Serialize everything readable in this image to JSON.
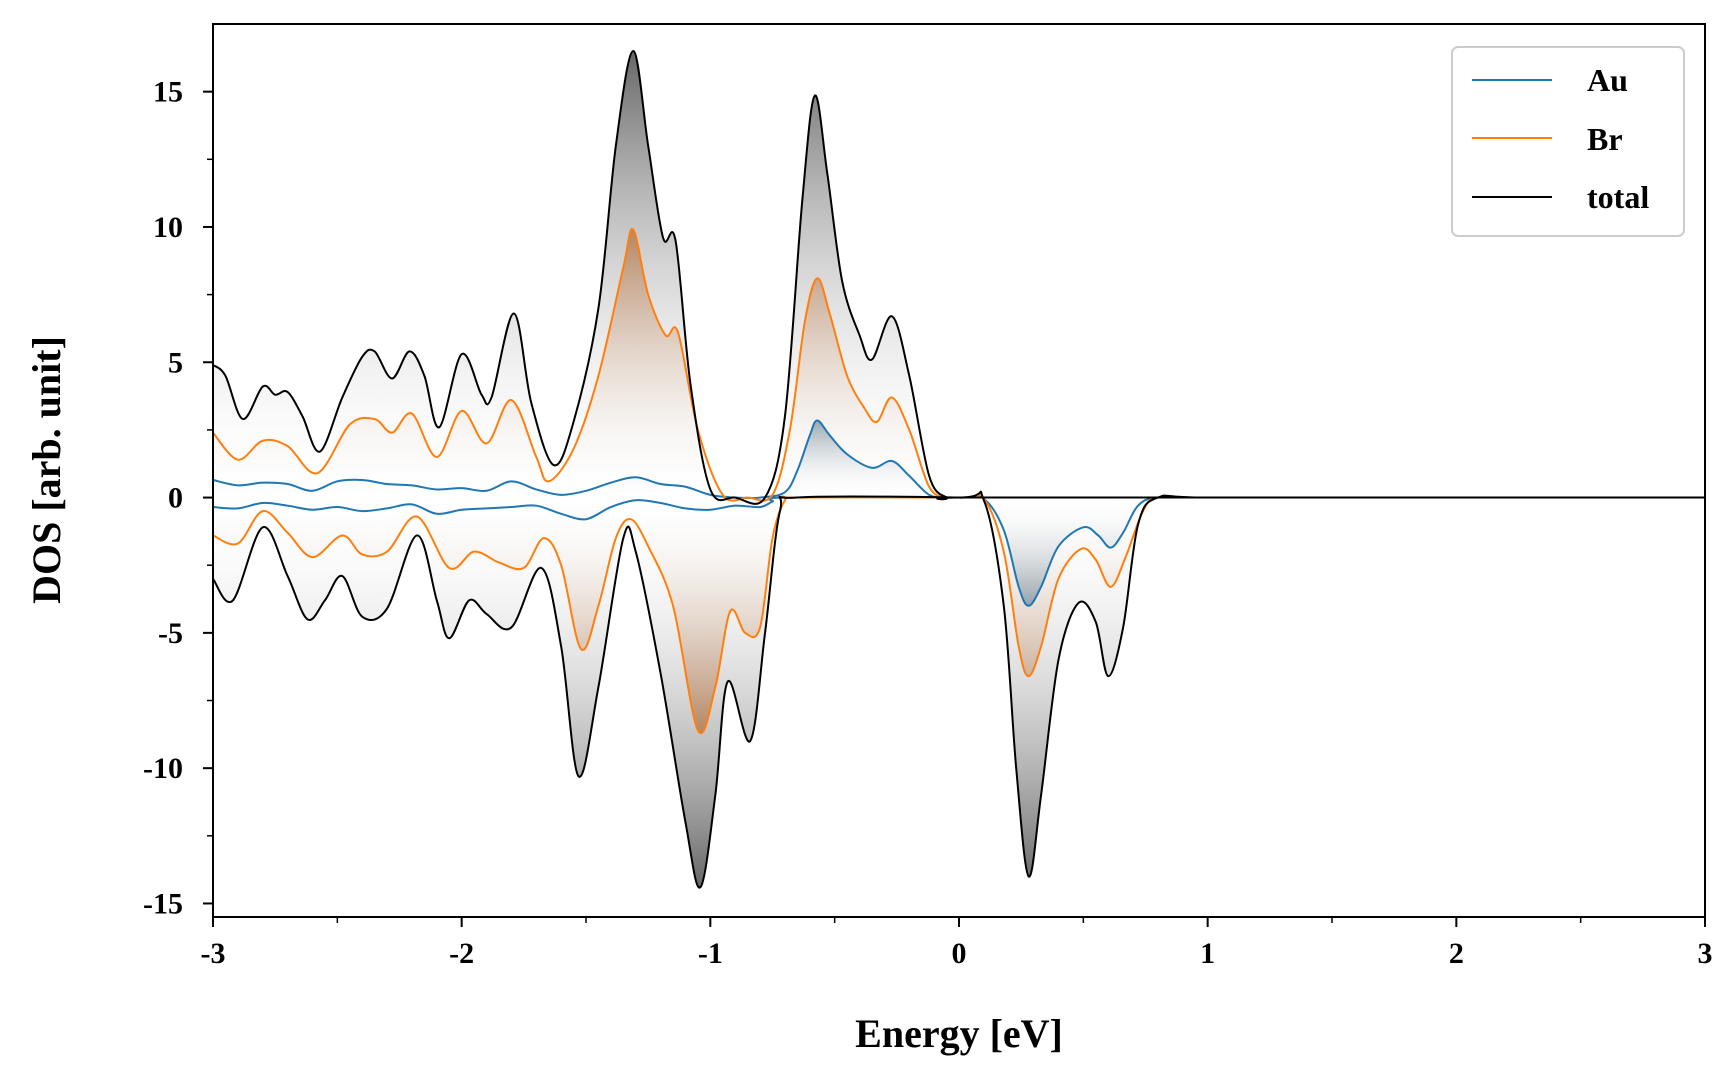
{
  "chart_data": {
    "type": "area",
    "xlabel": "Energy [eV]",
    "ylabel": "DOS [arb. unit]",
    "xlim": [
      -3,
      3
    ],
    "ylim": [
      -15.5,
      17.5
    ],
    "x_ticks": [
      -3,
      -2,
      -1,
      0,
      1,
      2,
      3
    ],
    "y_ticks": [
      -15,
      -10,
      -5,
      0,
      5,
      10,
      15
    ],
    "legend": {
      "position": "top-right",
      "entries": [
        "Au",
        "Br",
        "total"
      ]
    },
    "grid": false,
    "fill": "vertical gradient shading under each curve",
    "series": [
      {
        "name": "Au",
        "color": "#1f77b4",
        "up": [
          [
            -3.0,
            0.65
          ],
          [
            -2.9,
            0.45
          ],
          [
            -2.8,
            0.55
          ],
          [
            -2.7,
            0.5
          ],
          [
            -2.6,
            0.25
          ],
          [
            -2.5,
            0.6
          ],
          [
            -2.4,
            0.65
          ],
          [
            -2.3,
            0.5
          ],
          [
            -2.2,
            0.45
          ],
          [
            -2.1,
            0.3
          ],
          [
            -2.0,
            0.35
          ],
          [
            -1.9,
            0.25
          ],
          [
            -1.8,
            0.6
          ],
          [
            -1.7,
            0.3
          ],
          [
            -1.6,
            0.1
          ],
          [
            -1.5,
            0.25
          ],
          [
            -1.4,
            0.55
          ],
          [
            -1.3,
            0.75
          ],
          [
            -1.2,
            0.5
          ],
          [
            -1.1,
            0.4
          ],
          [
            -1.0,
            0.1
          ],
          [
            -0.9,
            0.0
          ],
          [
            -0.8,
            0.0
          ],
          [
            -0.7,
            0.2
          ],
          [
            -0.65,
            1.0
          ],
          [
            -0.6,
            2.3
          ],
          [
            -0.57,
            2.85
          ],
          [
            -0.52,
            2.3
          ],
          [
            -0.45,
            1.6
          ],
          [
            -0.35,
            1.1
          ],
          [
            -0.27,
            1.35
          ],
          [
            -0.2,
            0.8
          ],
          [
            -0.12,
            0.1
          ],
          [
            -0.05,
            0.0
          ],
          [
            0.0,
            0.0
          ],
          [
            1.0,
            0.0
          ],
          [
            2.0,
            0.0
          ],
          [
            3.0,
            0.0
          ]
        ],
        "down": [
          [
            -3.0,
            -0.35
          ],
          [
            -2.9,
            -0.4
          ],
          [
            -2.8,
            -0.2
          ],
          [
            -2.7,
            -0.3
          ],
          [
            -2.6,
            -0.45
          ],
          [
            -2.5,
            -0.35
          ],
          [
            -2.4,
            -0.5
          ],
          [
            -2.3,
            -0.4
          ],
          [
            -2.2,
            -0.25
          ],
          [
            -2.1,
            -0.6
          ],
          [
            -2.0,
            -0.45
          ],
          [
            -1.9,
            -0.4
          ],
          [
            -1.8,
            -0.35
          ],
          [
            -1.7,
            -0.3
          ],
          [
            -1.6,
            -0.6
          ],
          [
            -1.5,
            -0.8
          ],
          [
            -1.4,
            -0.35
          ],
          [
            -1.3,
            -0.1
          ],
          [
            -1.2,
            -0.2
          ],
          [
            -1.1,
            -0.4
          ],
          [
            -1.0,
            -0.45
          ],
          [
            -0.9,
            -0.3
          ],
          [
            -0.8,
            -0.35
          ],
          [
            -0.75,
            -0.15
          ],
          [
            -0.7,
            0.0
          ],
          [
            0.0,
            0.0
          ],
          [
            0.1,
            -0.05
          ],
          [
            0.18,
            -1.2
          ],
          [
            0.24,
            -3.3
          ],
          [
            0.28,
            -4.0
          ],
          [
            0.33,
            -3.3
          ],
          [
            0.4,
            -1.8
          ],
          [
            0.5,
            -1.1
          ],
          [
            0.56,
            -1.4
          ],
          [
            0.61,
            -1.85
          ],
          [
            0.66,
            -1.3
          ],
          [
            0.72,
            -0.3
          ],
          [
            0.8,
            0.0
          ],
          [
            1.0,
            0.0
          ],
          [
            2.0,
            0.0
          ],
          [
            3.0,
            0.0
          ]
        ]
      },
      {
        "name": "Br",
        "color": "#ff7f0e",
        "up": [
          [
            -3.0,
            2.4
          ],
          [
            -2.9,
            1.4
          ],
          [
            -2.8,
            2.1
          ],
          [
            -2.7,
            1.9
          ],
          [
            -2.58,
            0.9
          ],
          [
            -2.45,
            2.7
          ],
          [
            -2.35,
            2.9
          ],
          [
            -2.28,
            2.4
          ],
          [
            -2.2,
            3.1
          ],
          [
            -2.1,
            1.5
          ],
          [
            -2.0,
            3.2
          ],
          [
            -1.9,
            2.0
          ],
          [
            -1.8,
            3.6
          ],
          [
            -1.7,
            1.5
          ],
          [
            -1.65,
            0.6
          ],
          [
            -1.55,
            1.8
          ],
          [
            -1.45,
            4.5
          ],
          [
            -1.35,
            8.5
          ],
          [
            -1.31,
            9.9
          ],
          [
            -1.25,
            7.5
          ],
          [
            -1.18,
            6.0
          ],
          [
            -1.13,
            6.1
          ],
          [
            -1.05,
            2.5
          ],
          [
            -0.95,
            0.1
          ],
          [
            -0.85,
            0.0
          ],
          [
            -0.75,
            0.1
          ],
          [
            -0.68,
            2.5
          ],
          [
            -0.62,
            6.5
          ],
          [
            -0.57,
            8.1
          ],
          [
            -0.52,
            6.8
          ],
          [
            -0.45,
            4.5
          ],
          [
            -0.38,
            3.3
          ],
          [
            -0.33,
            2.8
          ],
          [
            -0.27,
            3.7
          ],
          [
            -0.2,
            2.5
          ],
          [
            -0.12,
            0.4
          ],
          [
            -0.05,
            0.0
          ],
          [
            0.0,
            0.0
          ],
          [
            1.0,
            0.0
          ],
          [
            2.0,
            0.0
          ],
          [
            3.0,
            0.0
          ]
        ],
        "down": [
          [
            -3.0,
            -1.4
          ],
          [
            -2.9,
            -1.7
          ],
          [
            -2.8,
            -0.5
          ],
          [
            -2.7,
            -1.3
          ],
          [
            -2.6,
            -2.2
          ],
          [
            -2.48,
            -1.4
          ],
          [
            -2.4,
            -2.1
          ],
          [
            -2.3,
            -2.0
          ],
          [
            -2.18,
            -0.7
          ],
          [
            -2.05,
            -2.6
          ],
          [
            -1.95,
            -2.0
          ],
          [
            -1.85,
            -2.4
          ],
          [
            -1.75,
            -2.6
          ],
          [
            -1.67,
            -1.5
          ],
          [
            -1.6,
            -2.5
          ],
          [
            -1.52,
            -5.6
          ],
          [
            -1.45,
            -4.0
          ],
          [
            -1.38,
            -1.5
          ],
          [
            -1.32,
            -0.8
          ],
          [
            -1.25,
            -1.8
          ],
          [
            -1.15,
            -4.0
          ],
          [
            -1.05,
            -8.6
          ],
          [
            -0.98,
            -7.0
          ],
          [
            -0.92,
            -4.2
          ],
          [
            -0.86,
            -5.0
          ],
          [
            -0.8,
            -4.8
          ],
          [
            -0.75,
            -1.5
          ],
          [
            -0.7,
            -0.1
          ],
          [
            -0.65,
            0.0
          ],
          [
            0.0,
            0.0
          ],
          [
            0.1,
            -0.05
          ],
          [
            0.18,
            -2.0
          ],
          [
            0.24,
            -5.5
          ],
          [
            0.28,
            -6.6
          ],
          [
            0.33,
            -5.5
          ],
          [
            0.4,
            -3.0
          ],
          [
            0.49,
            -1.9
          ],
          [
            0.55,
            -2.3
          ],
          [
            0.61,
            -3.3
          ],
          [
            0.67,
            -2.2
          ],
          [
            0.74,
            -0.5
          ],
          [
            0.8,
            0.0
          ],
          [
            1.0,
            0.0
          ],
          [
            2.0,
            0.0
          ],
          [
            3.0,
            0.0
          ]
        ]
      },
      {
        "name": "total",
        "color": "#000000",
        "up": [
          [
            -3.0,
            4.9
          ],
          [
            -2.95,
            4.5
          ],
          [
            -2.88,
            2.9
          ],
          [
            -2.8,
            4.1
          ],
          [
            -2.75,
            3.8
          ],
          [
            -2.7,
            3.9
          ],
          [
            -2.64,
            3.0
          ],
          [
            -2.57,
            1.7
          ],
          [
            -2.48,
            3.7
          ],
          [
            -2.4,
            5.2
          ],
          [
            -2.35,
            5.4
          ],
          [
            -2.28,
            4.4
          ],
          [
            -2.21,
            5.4
          ],
          [
            -2.15,
            4.5
          ],
          [
            -2.09,
            2.6
          ],
          [
            -2.0,
            5.3
          ],
          [
            -1.92,
            3.8
          ],
          [
            -1.88,
            3.7
          ],
          [
            -1.79,
            6.8
          ],
          [
            -1.72,
            3.5
          ],
          [
            -1.63,
            1.2
          ],
          [
            -1.55,
            2.8
          ],
          [
            -1.45,
            7.0
          ],
          [
            -1.38,
            13.0
          ],
          [
            -1.31,
            16.5
          ],
          [
            -1.25,
            13.0
          ],
          [
            -1.19,
            9.6
          ],
          [
            -1.14,
            9.5
          ],
          [
            -1.08,
            4.2
          ],
          [
            -1.0,
            0.3
          ],
          [
            -0.9,
            0.0
          ],
          [
            -0.78,
            0.0
          ],
          [
            -0.7,
            3.0
          ],
          [
            -0.63,
            11.0
          ],
          [
            -0.58,
            14.85
          ],
          [
            -0.53,
            12.0
          ],
          [
            -0.47,
            8.0
          ],
          [
            -0.4,
            6.0
          ],
          [
            -0.35,
            5.1
          ],
          [
            -0.27,
            6.7
          ],
          [
            -0.2,
            4.5
          ],
          [
            -0.12,
            0.8
          ],
          [
            -0.05,
            0.0
          ],
          [
            0.0,
            0.0
          ],
          [
            1.0,
            0.0
          ],
          [
            2.0,
            0.0
          ],
          [
            3.0,
            0.0
          ]
        ],
        "down": [
          [
            -3.0,
            -3.0
          ],
          [
            -2.92,
            -3.8
          ],
          [
            -2.8,
            -1.1
          ],
          [
            -2.7,
            -2.9
          ],
          [
            -2.62,
            -4.5
          ],
          [
            -2.55,
            -3.8
          ],
          [
            -2.48,
            -2.9
          ],
          [
            -2.4,
            -4.4
          ],
          [
            -2.3,
            -4.1
          ],
          [
            -2.18,
            -1.4
          ],
          [
            -2.1,
            -3.8
          ],
          [
            -2.05,
            -5.2
          ],
          [
            -1.97,
            -3.8
          ],
          [
            -1.9,
            -4.3
          ],
          [
            -1.8,
            -4.8
          ],
          [
            -1.68,
            -2.6
          ],
          [
            -1.6,
            -5.5
          ],
          [
            -1.53,
            -10.3
          ],
          [
            -1.45,
            -7.0
          ],
          [
            -1.35,
            -1.5
          ],
          [
            -1.3,
            -2.0
          ],
          [
            -1.2,
            -6.5
          ],
          [
            -1.1,
            -12.0
          ],
          [
            -1.04,
            -14.4
          ],
          [
            -0.98,
            -11.0
          ],
          [
            -0.93,
            -6.8
          ],
          [
            -0.84,
            -9.0
          ],
          [
            -0.78,
            -5.0
          ],
          [
            -0.72,
            -0.5
          ],
          [
            -0.65,
            0.0
          ],
          [
            0.0,
            0.0
          ],
          [
            0.1,
            -0.1
          ],
          [
            0.18,
            -4.0
          ],
          [
            0.23,
            -10.0
          ],
          [
            0.28,
            -14.0
          ],
          [
            0.33,
            -11.0
          ],
          [
            0.4,
            -6.0
          ],
          [
            0.48,
            -3.9
          ],
          [
            0.55,
            -4.6
          ],
          [
            0.6,
            -6.6
          ],
          [
            0.66,
            -4.8
          ],
          [
            0.72,
            -1.0
          ],
          [
            0.8,
            0.0
          ],
          [
            1.0,
            0.0
          ],
          [
            2.0,
            0.0
          ],
          [
            3.0,
            0.0
          ]
        ]
      }
    ]
  }
}
